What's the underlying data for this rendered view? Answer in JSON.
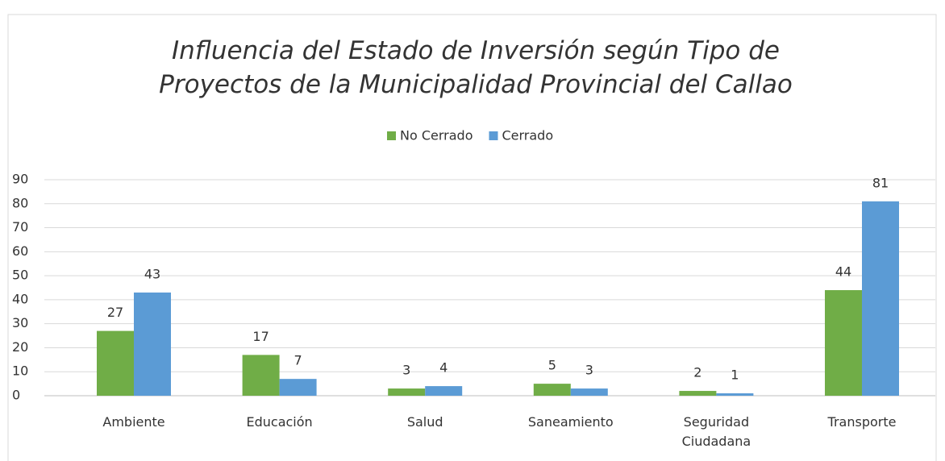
{
  "chart_data": {
    "type": "bar",
    "title": "Influencia del Estado de Inversión según Tipo de Proyectos de la Municipalidad Provincial del Callao",
    "categories": [
      "Ambiente",
      "Educación",
      "Salud",
      "Saneamiento",
      "Seguridad Ciudadana",
      "Transporte"
    ],
    "series": [
      {
        "name": "No Cerrado",
        "color": "#70ad47",
        "values": [
          27,
          17,
          3,
          5,
          2,
          44
        ]
      },
      {
        "name": "Cerrado",
        "color": "#5b9bd5",
        "values": [
          43,
          7,
          4,
          3,
          1,
          81
        ]
      }
    ],
    "ylim": [
      0,
      90
    ],
    "yticks": [
      0,
      10,
      20,
      30,
      40,
      50,
      60,
      70,
      80,
      90
    ],
    "grid": true,
    "legend": "top"
  }
}
